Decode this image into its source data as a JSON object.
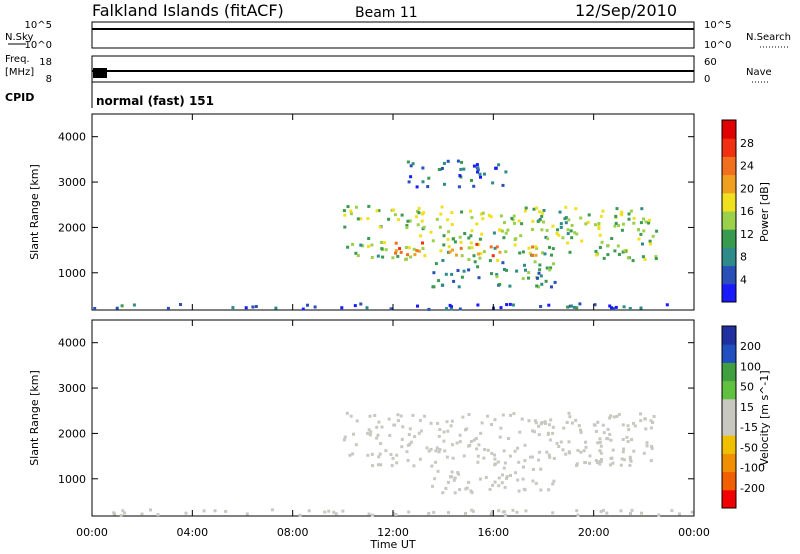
{
  "header": {
    "title": "Falkland Islands (fitACF)",
    "beam": "Beam 11",
    "date": "12/Sep/2010"
  },
  "strips": {
    "nsky": {
      "label": "N.Sky",
      "ticks_left": [
        "10^5",
        "10^0"
      ],
      "right_label": "N.Search",
      "ticks_right": [
        "10^5",
        "10^0"
      ]
    },
    "freq": {
      "label_top": "Freq.",
      "label_bottom": "[MHz]",
      "ticks_left": [
        "18",
        "8"
      ],
      "right_label": "Nave",
      "ticks_right": [
        "60",
        "0"
      ]
    },
    "cpid": {
      "label": "CPID",
      "text": "normal (fast) 151"
    }
  },
  "xaxis": {
    "label": "Time UT",
    "ticks": [
      "00:00",
      "04:00",
      "08:00",
      "12:00",
      "16:00",
      "20:00",
      "00:00"
    ],
    "range_hours": [
      0,
      24
    ]
  },
  "colors": {
    "power": [
      "#1a1aff",
      "#2a4fb8",
      "#2f8a8a",
      "#3a9a50",
      "#9ad04a",
      "#f0e020",
      "#f0a020",
      "#f07020",
      "#f03010",
      "#e00000"
    ],
    "velocity": [
      "#f00000",
      "#f06000",
      "#f09000",
      "#f0c000",
      "#c8c8c0",
      "#c8c8c0",
      "#60c040",
      "#40a040",
      "#2050c0",
      "#2030a0"
    ]
  },
  "chart_data": [
    {
      "type": "heatmap",
      "name": "power-panel",
      "ylabel": "Slant Range [km]",
      "yticks": [
        "4000",
        "3000",
        "2000",
        "1000"
      ],
      "ytick_values": [
        4000,
        3000,
        2000,
        1000
      ],
      "ylim": [
        180,
        4500
      ],
      "colorbar": {
        "label": "Power [dB]",
        "ticks": [
          "28",
          "24",
          "20",
          "16",
          "12",
          "8",
          "4"
        ],
        "range": [
          0,
          32
        ]
      },
      "regions": [
        {
          "t_start": 10.0,
          "t_end": 22.5,
          "r_low": 1300,
          "r_high": 2500,
          "value": 14
        },
        {
          "t_start": 12.0,
          "t_end": 18.0,
          "r_low": 1400,
          "r_high": 1700,
          "value": 22
        },
        {
          "t_start": 13.5,
          "t_end": 18.5,
          "r_low": 700,
          "r_high": 1300,
          "value": 10
        },
        {
          "t_start": 12.5,
          "t_end": 16.5,
          "r_low": 2900,
          "r_high": 3500,
          "value": 6
        },
        {
          "t_start": 0.0,
          "t_end": 24.0,
          "r_low": 180,
          "r_high": 350,
          "value": 5
        }
      ]
    },
    {
      "type": "heatmap",
      "name": "velocity-panel",
      "ylabel": "Slant Range [km]",
      "yticks": [
        "4000",
        "3000",
        "2000",
        "1000"
      ],
      "ytick_values": [
        4000,
        3000,
        2000,
        1000
      ],
      "ylim": [
        180,
        4500
      ],
      "colorbar": {
        "label": "Velocity [m s^-1]",
        "ticks": [
          "200",
          "100",
          "50",
          "15",
          "-15",
          "-50",
          "-100",
          "-200"
        ],
        "range": [
          -250,
          250
        ]
      },
      "regions": [
        {
          "t_start": 10.0,
          "t_end": 22.5,
          "r_low": 1300,
          "r_high": 2500,
          "value": 0
        },
        {
          "t_start": 13.5,
          "t_end": 18.5,
          "r_low": 700,
          "r_high": 1300,
          "value": 0
        },
        {
          "t_start": 0.0,
          "t_end": 24.0,
          "r_low": 180,
          "r_high": 350,
          "value": 30
        }
      ]
    }
  ]
}
